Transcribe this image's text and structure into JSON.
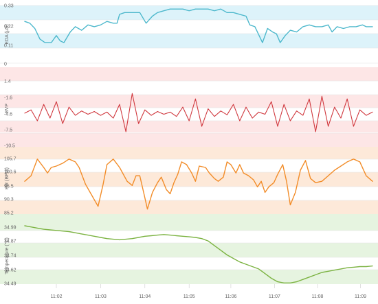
{
  "chart_data": [
    {
      "type": "line",
      "id": "eda",
      "ylabel": "EDA (µS)",
      "ytick_labels": [
        "0.33",
        "0.22",
        "0.11",
        "0"
      ],
      "ylim": [
        0,
        0.33
      ],
      "bands": "blue",
      "color": "#4db8cc",
      "points": [
        [
          0,
          0.24
        ],
        [
          0.8,
          0.23
        ],
        [
          1.6,
          0.2
        ],
        [
          2.4,
          0.14
        ],
        [
          3.2,
          0.12
        ],
        [
          4.2,
          0.12
        ],
        [
          5.0,
          0.16
        ],
        [
          5.6,
          0.13
        ],
        [
          6.2,
          0.12
        ],
        [
          7.2,
          0.18
        ],
        [
          8.0,
          0.21
        ],
        [
          9.0,
          0.19
        ],
        [
          10.0,
          0.22
        ],
        [
          11.0,
          0.21
        ],
        [
          12.0,
          0.22
        ],
        [
          13.0,
          0.24
        ],
        [
          14.0,
          0.23
        ],
        [
          14.6,
          0.23
        ],
        [
          15.0,
          0.28
        ],
        [
          15.8,
          0.29
        ],
        [
          16.6,
          0.29
        ],
        [
          17.2,
          0.29
        ],
        [
          18.2,
          0.29
        ],
        [
          19.2,
          0.23
        ],
        [
          20.2,
          0.27
        ],
        [
          21.0,
          0.29
        ],
        [
          22.0,
          0.3
        ],
        [
          23.0,
          0.31
        ],
        [
          24.0,
          0.31
        ],
        [
          25.0,
          0.31
        ],
        [
          26.0,
          0.3
        ],
        [
          27.0,
          0.31
        ],
        [
          28.0,
          0.31
        ],
        [
          29.0,
          0.31
        ],
        [
          30.0,
          0.3
        ],
        [
          31.0,
          0.31
        ],
        [
          32.0,
          0.29
        ],
        [
          33.0,
          0.29
        ],
        [
          34.0,
          0.28
        ],
        [
          35.0,
          0.27
        ],
        [
          35.6,
          0.22
        ],
        [
          36.4,
          0.21
        ],
        [
          37.6,
          0.12
        ],
        [
          38.4,
          0.2
        ],
        [
          39.2,
          0.18
        ],
        [
          39.8,
          0.17
        ],
        [
          40.4,
          0.12
        ],
        [
          41.2,
          0.16
        ],
        [
          42.0,
          0.19
        ],
        [
          43.0,
          0.18
        ],
        [
          44.0,
          0.21
        ],
        [
          45.0,
          0.22
        ],
        [
          46.0,
          0.21
        ],
        [
          47.0,
          0.21
        ],
        [
          48.0,
          0.22
        ],
        [
          48.6,
          0.18
        ],
        [
          49.4,
          0.21
        ],
        [
          50.4,
          0.2
        ],
        [
          51.4,
          0.21
        ],
        [
          52.4,
          0.21
        ],
        [
          53.4,
          0.22
        ],
        [
          54.0,
          0.21
        ],
        [
          55.0,
          0.21
        ]
      ]
    },
    {
      "type": "line",
      "id": "bvp",
      "ylabel": "BVP",
      "ytick_labels": [
        "1.4",
        "-1.6",
        "-4.6",
        "-7.5",
        "-10.5"
      ],
      "ylim": [
        -10.5,
        1.4
      ],
      "bands": "red",
      "color": "#d0383e",
      "points": [
        [
          0,
          -4.6
        ],
        [
          1,
          -4.0
        ],
        [
          2,
          -6.0
        ],
        [
          3,
          -3.0
        ],
        [
          4,
          -5.5
        ],
        [
          5,
          -2.5
        ],
        [
          6,
          -6.5
        ],
        [
          7,
          -3.5
        ],
        [
          8,
          -5.0
        ],
        [
          9,
          -4.2
        ],
        [
          10,
          -4.8
        ],
        [
          11,
          -4.3
        ],
        [
          12,
          -5.0
        ],
        [
          13,
          -4.4
        ],
        [
          14,
          -5.5
        ],
        [
          15,
          -3.0
        ],
        [
          16,
          -8.0
        ],
        [
          17,
          -1.0
        ],
        [
          18,
          -6.5
        ],
        [
          19,
          -4.0
        ],
        [
          20,
          -5.0
        ],
        [
          21,
          -4.3
        ],
        [
          22,
          -4.8
        ],
        [
          23,
          -4.4
        ],
        [
          24,
          -5.2
        ],
        [
          25,
          -3.5
        ],
        [
          26,
          -6.0
        ],
        [
          27,
          -2.0
        ],
        [
          28,
          -7.0
        ],
        [
          29,
          -3.8
        ],
        [
          30,
          -5.2
        ],
        [
          31,
          -4.2
        ],
        [
          32,
          -4.9
        ],
        [
          33,
          -3.0
        ],
        [
          34,
          -6.0
        ],
        [
          35,
          -3.5
        ],
        [
          36,
          -5.5
        ],
        [
          37,
          -4.4
        ],
        [
          38,
          -4.8
        ],
        [
          39,
          -2.5
        ],
        [
          40,
          -7.0
        ],
        [
          41,
          -3.0
        ],
        [
          42,
          -6.0
        ],
        [
          43,
          -4.2
        ],
        [
          44,
          -5.0
        ],
        [
          45,
          -2.0
        ],
        [
          46,
          -8.0
        ],
        [
          47,
          -1.5
        ],
        [
          48,
          -7.0
        ],
        [
          49,
          -3.5
        ],
        [
          50,
          -5.5
        ],
        [
          51,
          -2.0
        ],
        [
          52,
          -7.0
        ],
        [
          53,
          -4.0
        ],
        [
          54,
          -5.0
        ],
        [
          55,
          -4.4
        ]
      ]
    },
    {
      "type": "line",
      "id": "hr",
      "ylabel": "HR (BPM)",
      "ytick_labels": [
        "105.7",
        "100.6",
        "95.5",
        "90.3",
        "85.2"
      ],
      "ylim": [
        85.2,
        105.7
      ],
      "bands": "orange",
      "color": "#f28c28",
      "points": [
        [
          0,
          97.0
        ],
        [
          1,
          99.0
        ],
        [
          2,
          105.0
        ],
        [
          3,
          102.0
        ],
        [
          3.6,
          100.0
        ],
        [
          4.2,
          102.0
        ],
        [
          5.0,
          102.5
        ],
        [
          6.0,
          103.5
        ],
        [
          7.0,
          105.0
        ],
        [
          8.0,
          104.0
        ],
        [
          8.6,
          102.0
        ],
        [
          9.6,
          96.0
        ],
        [
          10.6,
          92.0
        ],
        [
          11.6,
          88.0
        ],
        [
          12.4,
          96.0
        ],
        [
          13.0,
          103.0
        ],
        [
          14.0,
          105.0
        ],
        [
          15.0,
          102.0
        ],
        [
          16.2,
          97.0
        ],
        [
          17.0,
          95.5
        ],
        [
          17.6,
          99.0
        ],
        [
          18.2,
          99.0
        ],
        [
          18.8,
          93.0
        ],
        [
          19.4,
          87.0
        ],
        [
          20.2,
          93.0
        ],
        [
          21.0,
          96.5
        ],
        [
          21.6,
          98.5
        ],
        [
          22.4,
          94.0
        ],
        [
          23.0,
          92.5
        ],
        [
          23.6,
          96.5
        ],
        [
          24.2,
          99.5
        ],
        [
          24.8,
          104.0
        ],
        [
          25.6,
          103.0
        ],
        [
          26.4,
          100.0
        ],
        [
          27.0,
          97.0
        ],
        [
          27.6,
          102.5
        ],
        [
          28.6,
          102.0
        ],
        [
          29.2,
          100.0
        ],
        [
          30.0,
          98.0
        ],
        [
          30.6,
          97.0
        ],
        [
          31.4,
          98.5
        ],
        [
          32.0,
          104.0
        ],
        [
          32.6,
          103.0
        ],
        [
          33.4,
          100.0
        ],
        [
          34.0,
          103.0
        ],
        [
          34.6,
          100.0
        ],
        [
          35.4,
          99.0
        ],
        [
          36.2,
          97.5
        ],
        [
          36.8,
          95.0
        ],
        [
          37.4,
          97.0
        ],
        [
          38.0,
          93.0
        ],
        [
          38.6,
          95.0
        ],
        [
          39.4,
          96.5
        ],
        [
          40.0,
          99.5
        ],
        [
          40.8,
          103.0
        ],
        [
          41.4,
          97.0
        ],
        [
          42.0,
          88.5
        ],
        [
          42.8,
          93.0
        ],
        [
          43.6,
          101.0
        ],
        [
          44.4,
          104.5
        ],
        [
          45.2,
          98.0
        ],
        [
          46.0,
          96.5
        ],
        [
          47.0,
          97.0
        ],
        [
          48.0,
          99.0
        ],
        [
          49.0,
          101.0
        ],
        [
          50.0,
          102.5
        ],
        [
          51.0,
          104.0
        ],
        [
          52.0,
          105.0
        ],
        [
          53.0,
          104.0
        ],
        [
          54.0,
          99.0
        ],
        [
          55.0,
          97.0
        ]
      ]
    },
    {
      "type": "line",
      "id": "temp",
      "ylabel": "Temperature (°C)",
      "ytick_labels": [
        "34.99",
        "34.87",
        "34.74",
        "34.62",
        "34.49"
      ],
      "ylim": [
        34.49,
        34.99
      ],
      "bands": "green",
      "color": "#7cb342",
      "points": [
        [
          0,
          34.99
        ],
        [
          1,
          34.98
        ],
        [
          2,
          34.97
        ],
        [
          3,
          34.96
        ],
        [
          4,
          34.955
        ],
        [
          5,
          34.95
        ],
        [
          6,
          34.945
        ],
        [
          7,
          34.94
        ],
        [
          8,
          34.93
        ],
        [
          9,
          34.92
        ],
        [
          10,
          34.91
        ],
        [
          11,
          34.9
        ],
        [
          12,
          34.89
        ],
        [
          13,
          34.88
        ],
        [
          14,
          34.875
        ],
        [
          15,
          34.87
        ],
        [
          16,
          34.875
        ],
        [
          17,
          34.88
        ],
        [
          18,
          34.89
        ],
        [
          19,
          34.9
        ],
        [
          20,
          34.905
        ],
        [
          21,
          34.91
        ],
        [
          22,
          34.915
        ],
        [
          23,
          34.91
        ],
        [
          24,
          34.905
        ],
        [
          25,
          34.9
        ],
        [
          26,
          34.895
        ],
        [
          27,
          34.89
        ],
        [
          28,
          34.88
        ],
        [
          29,
          34.86
        ],
        [
          30,
          34.82
        ],
        [
          31,
          34.78
        ],
        [
          32,
          34.74
        ],
        [
          33,
          34.71
        ],
        [
          34,
          34.68
        ],
        [
          35,
          34.66
        ],
        [
          36,
          34.64
        ],
        [
          37,
          34.62
        ],
        [
          38,
          34.58
        ],
        [
          39,
          34.54
        ],
        [
          40,
          34.51
        ],
        [
          41,
          34.5
        ],
        [
          42,
          34.5
        ],
        [
          43,
          34.51
        ],
        [
          44,
          34.53
        ],
        [
          45,
          34.55
        ],
        [
          46,
          34.57
        ],
        [
          47,
          34.59
        ],
        [
          48,
          34.6
        ],
        [
          49,
          34.61
        ],
        [
          50,
          34.62
        ],
        [
          51,
          34.63
        ],
        [
          52,
          34.635
        ],
        [
          53,
          34.64
        ],
        [
          54,
          34.64
        ],
        [
          55,
          34.645
        ]
      ]
    }
  ],
  "x_axis": {
    "tick_labels": [
      "11:02",
      "11:03",
      "11:04",
      "11:05",
      "11:06",
      "11:07",
      "11:08",
      "11:09"
    ],
    "tick_positions": [
      5,
      12,
      19,
      26,
      32.6,
      39.5,
      46.3,
      53.1
    ],
    "range": [
      0,
      55
    ]
  }
}
